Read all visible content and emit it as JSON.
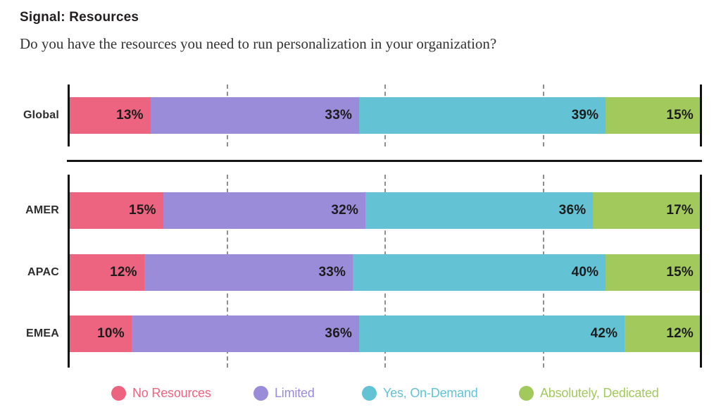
{
  "header": {
    "title": "Signal: Resources",
    "subtitle": "Do you have the resources you need to run personalization in your organization?"
  },
  "chart_data": {
    "type": "bar",
    "variant": "horizontal-stacked",
    "title": "Signal: Resources",
    "question": "Do you have the resources you need to run personalization in your organization?",
    "unit": "%",
    "xlim": [
      0,
      100
    ],
    "gridlines_pct": [
      25,
      50,
      75
    ],
    "grid_style": "dashed",
    "legend_position": "bottom",
    "series": [
      {
        "name": "No Resources",
        "color": "#EC6480"
      },
      {
        "name": "Limited",
        "color": "#9A8CD9"
      },
      {
        "name": "Yes, On-Demand",
        "color": "#63C3D5"
      },
      {
        "name": "Absolutely, Dedicated",
        "color": "#A2C95C"
      }
    ],
    "groups": [
      {
        "name": "global",
        "rows": [
          {
            "category": "Global",
            "values": [
              13,
              33,
              39,
              15
            ]
          }
        ]
      },
      {
        "name": "regions",
        "rows": [
          {
            "category": "AMER",
            "values": [
              15,
              32,
              36,
              17
            ]
          },
          {
            "category": "APAC",
            "values": [
              12,
              33,
              40,
              15
            ]
          },
          {
            "category": "EMEA",
            "values": [
              10,
              36,
              42,
              12
            ]
          }
        ]
      }
    ]
  }
}
